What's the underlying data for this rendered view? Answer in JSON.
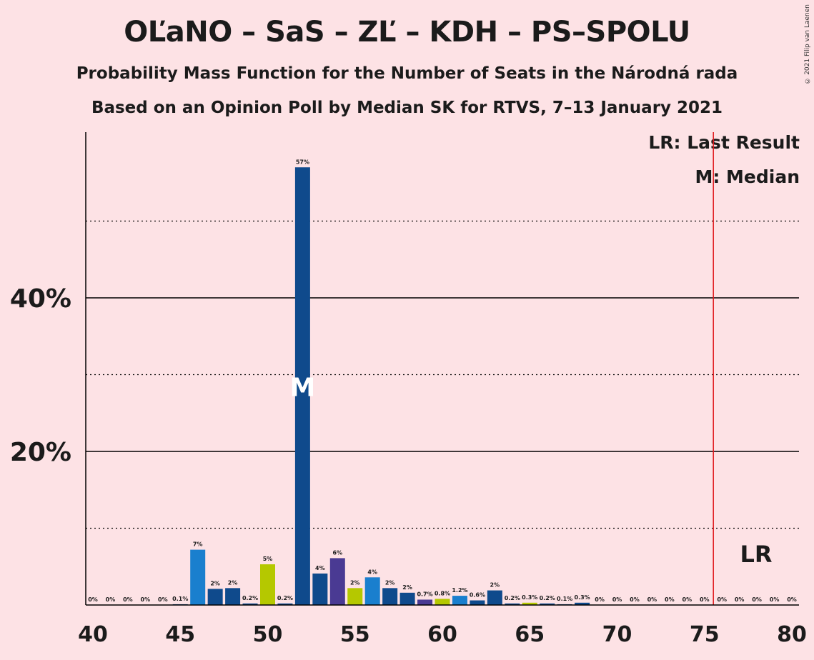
{
  "title": "OĽaNO – SaS – ZĽ – KDH – PS–SPOLU",
  "subtitle1": "Probability Mass Function for the Number of Seats in the Národná rada",
  "subtitle2": "Based on an Opinion Poll by Median SK for RTVS, 7–13 January 2021",
  "copyright": "© 2021 Filip van Laenen",
  "legend": {
    "last_result": "LR: Last Result",
    "median": "M: Median"
  },
  "colors": {
    "background": "#fde2e5",
    "dark_blue": "#0f4a8c",
    "light_blue": "#1a7fce",
    "yellow_green": "#b5c800",
    "purple": "#4a3a93",
    "last_result_line": "#e0181c"
  },
  "chart_data": {
    "type": "bar",
    "x": [
      40,
      41,
      42,
      43,
      44,
      45,
      46,
      47,
      48,
      49,
      50,
      51,
      52,
      53,
      54,
      55,
      56,
      57,
      58,
      59,
      60,
      61,
      62,
      63,
      64,
      65,
      66,
      67,
      68,
      69,
      70,
      71,
      72,
      73,
      74,
      75,
      76,
      77,
      78,
      79,
      80
    ],
    "values": [
      0,
      0,
      0,
      0,
      0,
      0.1,
      7,
      2,
      2,
      0.2,
      5,
      0.2,
      57,
      4,
      6,
      2,
      4,
      2,
      2,
      0.7,
      0.8,
      1.2,
      0.6,
      2,
      0.2,
      0.3,
      0.2,
      0.1,
      0.3,
      0,
      0,
      0,
      0,
      0,
      0,
      0,
      0,
      0,
      0,
      0,
      0
    ],
    "display_values": [
      0,
      0,
      0,
      0,
      0,
      0.1,
      7.2,
      2.1,
      2.2,
      0.2,
      5.3,
      0.2,
      57,
      4.1,
      6.1,
      2.2,
      3.6,
      2.2,
      1.6,
      0.7,
      0.8,
      1.2,
      0.6,
      1.9,
      0.2,
      0.3,
      0.2,
      0.1,
      0.3,
      0,
      0,
      0,
      0,
      0,
      0,
      0,
      0,
      0,
      0,
      0,
      0
    ],
    "labels": [
      "0%",
      "0%",
      "0%",
      "0%",
      "0%",
      "0.1%",
      "7%",
      "2%",
      "2%",
      "0.2%",
      "5%",
      "0.2%",
      "57%",
      "4%",
      "6%",
      "2%",
      "4%",
      "2%",
      "2%",
      "0.7%",
      "0.8%",
      "1.2%",
      "0.6%",
      "2%",
      "0.2%",
      "0.3%",
      "0.2%",
      "0.1%",
      "0.3%",
      "0%",
      "0%",
      "0%",
      "0%",
      "0%",
      "0%",
      "0%",
      "0%",
      "0%",
      "0%",
      "0%",
      "0%"
    ],
    "bar_colors": [
      "dark_blue",
      "dark_blue",
      "dark_blue",
      "dark_blue",
      "dark_blue",
      "dark_blue",
      "light_blue",
      "dark_blue",
      "dark_blue",
      "dark_blue",
      "yellow_green",
      "dark_blue",
      "dark_blue",
      "dark_blue",
      "purple",
      "yellow_green",
      "light_blue",
      "dark_blue",
      "dark_blue",
      "purple",
      "yellow_green",
      "light_blue",
      "dark_blue",
      "dark_blue",
      "dark_blue",
      "yellow_green",
      "dark_blue",
      "dark_blue",
      "dark_blue",
      "dark_blue",
      "dark_blue",
      "dark_blue",
      "dark_blue",
      "dark_blue",
      "dark_blue",
      "dark_blue",
      "dark_blue",
      "dark_blue",
      "dark_blue",
      "dark_blue",
      "dark_blue"
    ],
    "x_ticks": [
      40,
      45,
      50,
      55,
      60,
      65,
      70,
      75,
      80
    ],
    "x_tick_labels": [
      "40",
      "45",
      "50",
      "55",
      "60",
      "65",
      "70",
      "75",
      "80"
    ],
    "y_ticks": [
      20,
      40
    ],
    "y_tick_labels": [
      "20%",
      "40%"
    ],
    "y_dotted_gridlines": [
      10,
      30,
      50
    ],
    "ylim": [
      0,
      62
    ],
    "xlim": [
      39.5,
      80.5
    ],
    "median_seat": 52,
    "median_marker": "M",
    "last_result_seat": 76,
    "last_result_marker": "LR"
  }
}
